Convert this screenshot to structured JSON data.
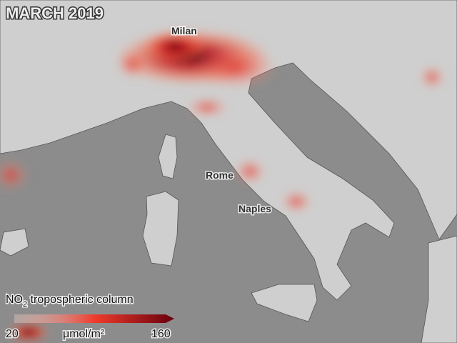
{
  "map": {
    "title": "MARCH 2019",
    "cities": [
      {
        "label": "Milan"
      },
      {
        "label": "Rome"
      },
      {
        "label": "Naples"
      }
    ],
    "legend": {
      "title_main": "NO",
      "title_subscript": "2",
      "title_rest": " tropospheric column",
      "min": 20,
      "max": 160,
      "unit": "μmol/m²"
    }
  }
}
